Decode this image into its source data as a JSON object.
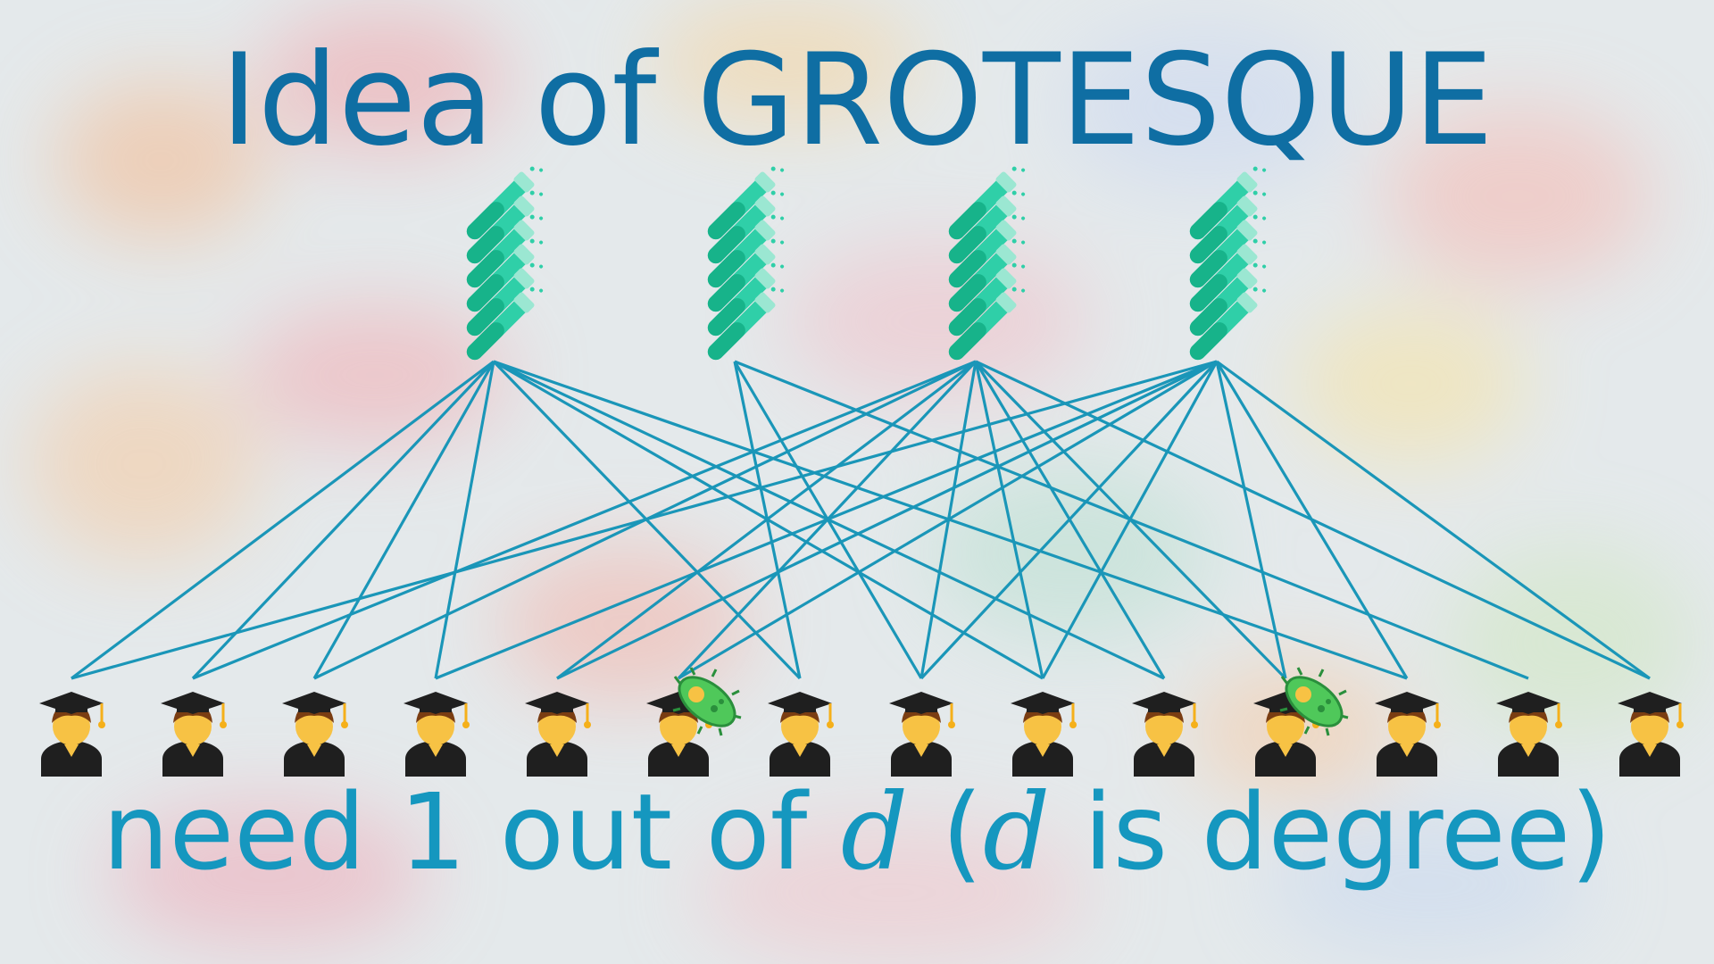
{
  "title": "Idea of GROTESQUE",
  "caption": {
    "part1": "need 1 out of ",
    "var1": "d",
    "part2": " (",
    "var2": "d",
    "part3": " is degree)"
  },
  "colors": {
    "title": "#0f6ea3",
    "caption": "#1597bf",
    "edge": "#1a96b8",
    "tube_glass": "#2fcfa8",
    "tube_liquid": "#17b38a",
    "cap": "#1f1f1f",
    "skin": "#f7c244",
    "hair": "#7a3d12",
    "gown": "#1f1f1f",
    "germ": "#4fc85a"
  },
  "icons": {
    "test": "test-tube-icon",
    "person": "student-icon",
    "infected": "microbe-icon"
  },
  "graph": {
    "tests": 4,
    "tubes_per_test": 6,
    "students": 14,
    "infected_students": [
      5,
      10
    ],
    "edges": [
      [
        0,
        0
      ],
      [
        0,
        1
      ],
      [
        0,
        2
      ],
      [
        0,
        3
      ],
      [
        0,
        6
      ],
      [
        0,
        8
      ],
      [
        0,
        9
      ],
      [
        0,
        11
      ],
      [
        1,
        6
      ],
      [
        1,
        7
      ],
      [
        1,
        12
      ],
      [
        2,
        1
      ],
      [
        2,
        2
      ],
      [
        2,
        4
      ],
      [
        2,
        5
      ],
      [
        2,
        7
      ],
      [
        2,
        8
      ],
      [
        2,
        9
      ],
      [
        2,
        10
      ],
      [
        2,
        13
      ],
      [
        3,
        0
      ],
      [
        3,
        3
      ],
      [
        3,
        4
      ],
      [
        3,
        5
      ],
      [
        3,
        7
      ],
      [
        3,
        8
      ],
      [
        3,
        10
      ],
      [
        3,
        11
      ],
      [
        3,
        13
      ]
    ]
  }
}
